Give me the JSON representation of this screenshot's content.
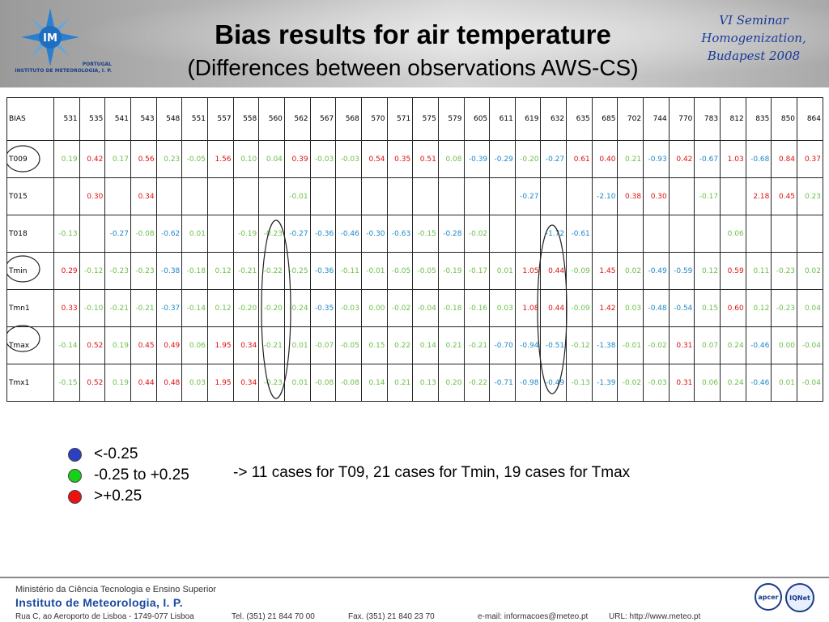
{
  "header": {
    "title": "Bias results for air temperature",
    "subtitle": "(Differences between observations AWS-CS)",
    "seminar": [
      "VI Seminar",
      "Homogenization,",
      "Budapest 2008"
    ],
    "logo_text": "IM",
    "logo_caption": [
      "PORTUGAL",
      "INSTITUTO DE METEOROLOGIA, I. P."
    ]
  },
  "table": {
    "corner": "BIAS",
    "columns": [
      "531",
      "535",
      "541",
      "543",
      "548",
      "551",
      "557",
      "558",
      "560",
      "562",
      "567",
      "568",
      "570",
      "571",
      "575",
      "579",
      "605",
      "611",
      "619",
      "632",
      "635",
      "685",
      "702",
      "744",
      "770",
      "783",
      "812",
      "835",
      "850",
      "864"
    ],
    "rows": [
      {
        "label": "T009",
        "values": [
          "0.19",
          "0.42",
          "0.17",
          "0.56",
          "0.23",
          "-0.05",
          "1.56",
          "0.10",
          "0.04",
          "0.39",
          "-0.03",
          "-0.03",
          "0.54",
          "0.35",
          "0.51",
          "0.08",
          "-0.39",
          "-0.29",
          "-0.20",
          "-0.27",
          "0.61",
          "0.40",
          "0.21",
          "-0.93",
          "0.42",
          "-0.67",
          "1.03",
          "-0.68",
          "0.84",
          "0.37"
        ]
      },
      {
        "label": "T015",
        "values": [
          "",
          "0.30",
          "",
          "0.34",
          "",
          "",
          "",
          "",
          "",
          "-0.01",
          "",
          "",
          "",
          "",
          "",
          "",
          "",
          "",
          "-0.27",
          "",
          "",
          "-2.10",
          "0.38",
          "0.30",
          "",
          "-0.17",
          "",
          "2.18",
          "0.45",
          "0.23"
        ]
      },
      {
        "label": "T018",
        "values": [
          "-0.13",
          "",
          "-0.27",
          "-0.08",
          "-0.62",
          "0.01",
          "",
          "-0.19",
          "-0.23",
          "-0.27",
          "-0.36",
          "-0.46",
          "-0.30",
          "-0.63",
          "-0.15",
          "-0.28",
          "-0.02",
          "",
          "",
          "-1.72",
          "-0.61",
          "",
          "",
          "",
          "",
          "",
          "0.06",
          "",
          "",
          ""
        ]
      },
      {
        "label": "Tmin",
        "values": [
          "0.29",
          "-0.12",
          "-0.23",
          "-0.23",
          "-0.38",
          "-0.18",
          "0.12",
          "-0.21",
          "-0.22",
          "-0.25",
          "-0.36",
          "-0.11",
          "-0.01",
          "-0.05",
          "-0.05",
          "-0.19",
          "-0.17",
          "0.01",
          "1.05",
          "0.44",
          "-0.09",
          "1.45",
          "0.02",
          "-0.49",
          "-0.59",
          "0.12",
          "0.59",
          "0.11",
          "-0.23",
          "0.02"
        ]
      },
      {
        "label": "Tmn1",
        "values": [
          "0.33",
          "-0.10",
          "-0.21",
          "-0.21",
          "-0.37",
          "-0.14",
          "0.12",
          "-0.20",
          "-0.20",
          "-0.24",
          "-0.35",
          "-0.03",
          "0.00",
          "-0.02",
          "-0.04",
          "-0.18",
          "-0.16",
          "0.03",
          "1.08",
          "0.44",
          "-0.09",
          "1.42",
          "0.03",
          "-0.48",
          "-0.54",
          "0.15",
          "0.60",
          "0.12",
          "-0.23",
          "0.04"
        ]
      },
      {
        "label": "Tmax",
        "values": [
          "-0.14",
          "0.52",
          "0.19",
          "0.45",
          "0.49",
          "0.06",
          "1.95",
          "0.34",
          "-0.21",
          "0.01",
          "-0.07",
          "-0.05",
          "0.15",
          "0.22",
          "0.14",
          "0.21",
          "-0.21",
          "-0.70",
          "-0.94",
          "-0.51",
          "-0.12",
          "-1.38",
          "-0.01",
          "-0.02",
          "0.31",
          "0.07",
          "0.24",
          "-0.46",
          "0.00",
          "-0.04"
        ]
      },
      {
        "label": "Tmx1",
        "values": [
          "-0.15",
          "0.52",
          "0.19",
          "0.44",
          "0.48",
          "0.03",
          "1.95",
          "0.34",
          "-0.23",
          "0.01",
          "-0.08",
          "-0.08",
          "0.14",
          "0.21",
          "0.13",
          "0.20",
          "-0.22",
          "-0.71",
          "-0.98",
          "-0.49",
          "-0.13",
          "-1.39",
          "-0.02",
          "-0.03",
          "0.31",
          "0.06",
          "0.24",
          "-0.46",
          "0.01",
          "-0.04"
        ]
      }
    ]
  },
  "legend": [
    {
      "label": "<-0.25",
      "color": "#2c3fc4"
    },
    {
      "label": "-0.25 to +0.25",
      "color": "#17d017"
    },
    {
      "label": ">+0.25",
      "color": "#ee1111"
    }
  ],
  "value_colors": {
    "neg": "#1e88c8",
    "mid": "#6cc04a",
    "pos": "#e01010"
  },
  "cases_note": "-> 11 cases for T09, 21 cases for Tmin, 19 cases for Tmax",
  "footer": {
    "ministry": "Ministério da Ciência Tecnologia e Ensino Superior",
    "institute": "Instituto de Meteorologia, I. P.",
    "address": "Rua C, ao Aeroporto de Lisboa - 1749-077 Lisboa",
    "tel": "Tel. (351) 21 844 70 00",
    "fax": "Fax. (351) 21 840 23 70",
    "email": "e-mail: informacoes@meteo.pt",
    "url": "URL: http://www.meteo.pt",
    "badge1": "apcer",
    "badge2": "IQNet"
  }
}
